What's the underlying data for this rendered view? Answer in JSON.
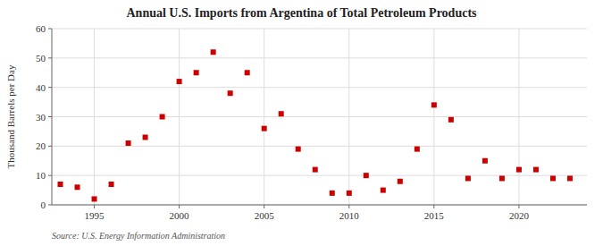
{
  "chart_data": {
    "type": "scatter",
    "title": "Annual U.S. Imports from Argentina of Total Petroleum Products",
    "y_label": "Thousand Barrels per Day",
    "source": "Source: U.S. Energy Information Administration",
    "x": [
      1993,
      1994,
      1995,
      1996,
      1997,
      1998,
      1999,
      2000,
      2001,
      2002,
      2003,
      2004,
      2005,
      2006,
      2007,
      2008,
      2009,
      2010,
      2011,
      2012,
      2013,
      2014,
      2015,
      2016,
      2017,
      2018,
      2019,
      2020,
      2021,
      2022,
      2023
    ],
    "values": [
      7,
      6,
      2,
      7,
      21,
      23,
      30,
      42,
      45,
      52,
      38,
      45,
      26,
      31,
      19,
      12,
      4,
      4,
      10,
      5,
      8,
      19,
      34,
      29,
      9,
      15,
      9,
      12,
      12,
      9,
      9
    ],
    "color": "#cc0000",
    "marker": "square",
    "xlim": [
      1992.5,
      2024
    ],
    "xticks": [
      1995,
      2000,
      2005,
      2010,
      2015,
      2020
    ],
    "ylim": [
      0,
      60
    ],
    "yticks": [
      0,
      10,
      20,
      30,
      40,
      50,
      60
    ],
    "grid": true
  }
}
